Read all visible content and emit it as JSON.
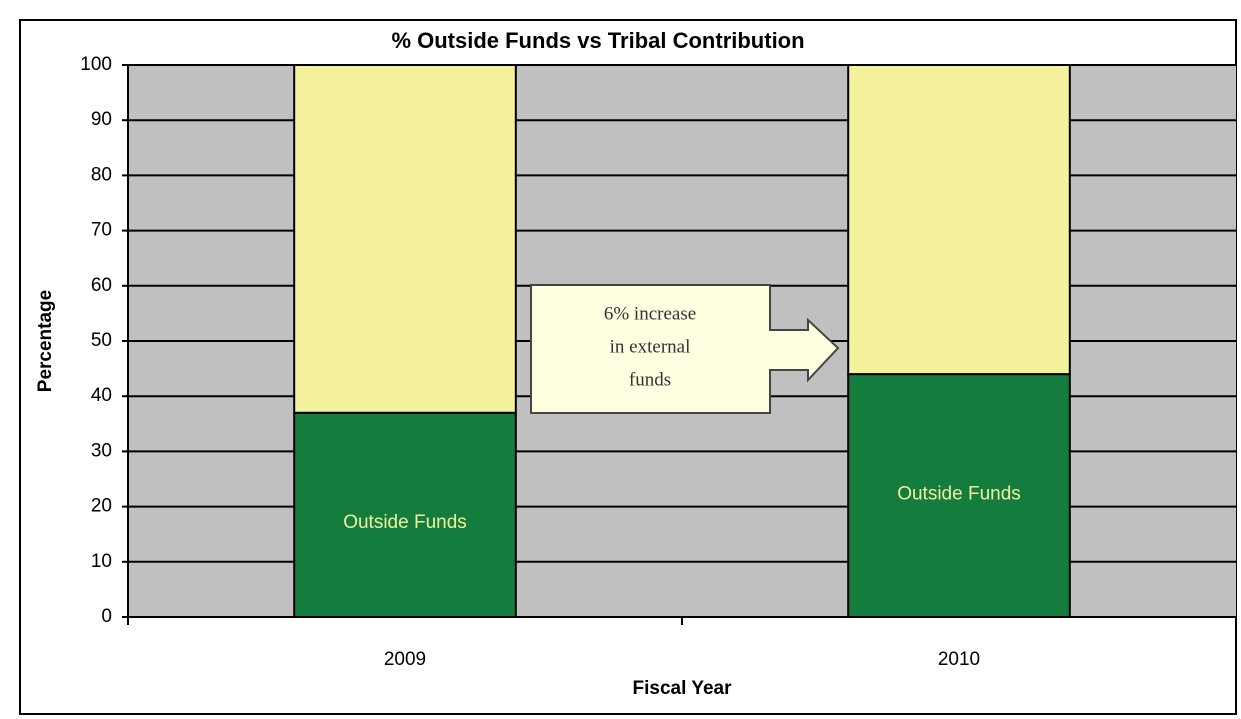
{
  "chart_data": {
    "type": "stacked_bar",
    "title": "% Outside Funds vs Tribal Contribution",
    "x_label": "Fiscal Year",
    "y_label": "Percentage",
    "categories": [
      "2009",
      "2010"
    ],
    "series": [
      {
        "name": "Outside Funds",
        "color": "#147c3c",
        "values": [
          37,
          44
        ]
      },
      {
        "color": "#f5f29e",
        "values": [
          63,
          56
        ]
      }
    ],
    "ylim": [
      0,
      100
    ],
    "yticks": [
      0,
      10,
      20,
      30,
      40,
      50,
      60,
      70,
      80,
      90,
      100
    ],
    "grid": true,
    "annotation": [
      "6% increase",
      "in external",
      "funds"
    ]
  }
}
